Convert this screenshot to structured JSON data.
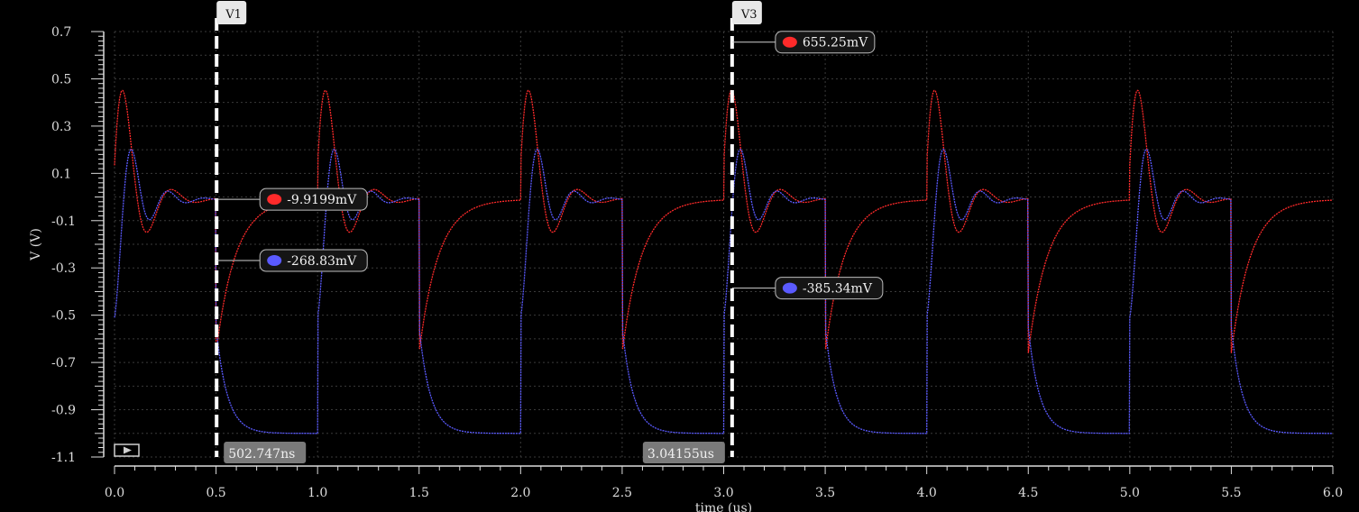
{
  "chart_data": {
    "type": "line",
    "xlabel": "time (us)",
    "ylabel": "V (V)",
    "xlim": [
      0,
      6.0
    ],
    "ylim": [
      -1.1,
      0.7
    ],
    "xticks": [
      "0.0",
      "0.5",
      "1.0",
      "1.5",
      "2.0",
      "2.5",
      "3.0",
      "3.5",
      "4.0",
      "4.5",
      "5.0",
      "5.5",
      "6.0"
    ],
    "yticks": [
      "0.7",
      "0.5",
      "0.3",
      "0.1",
      "-0.1",
      "-0.3",
      "-0.5",
      "-0.7",
      "-0.9",
      "-1.1"
    ],
    "grid": true,
    "background": "#000000",
    "series": [
      {
        "color": "#ff2a2a",
        "period_us": 1.0,
        "steady_level": -0.01,
        "peak": 0.655,
        "trough": -0.66
      },
      {
        "color": "#5a5aff",
        "period_us": 1.0,
        "steady_level": -0.01,
        "peak": 0.14,
        "low_level": -1.0
      }
    ],
    "cursors": [
      {
        "label": "V1",
        "time": 0.502747,
        "time_label": "502.747ns",
        "readouts": [
          {
            "color": "#ff2a2a",
            "value": -0.0099199,
            "text": "-9.9199mV"
          },
          {
            "color": "#5a5aff",
            "value": -0.26883,
            "text": "-268.83mV"
          }
        ]
      },
      {
        "label": "V3",
        "time": 3.04155,
        "time_label": "3.04155us",
        "readouts": [
          {
            "color": "#ff2a2a",
            "value": 0.65525,
            "text": "655.25mV"
          },
          {
            "color": "#5a5aff",
            "value": -0.38534,
            "text": "-385.34mV"
          }
        ]
      }
    ]
  },
  "icons": {
    "play_button": "play-icon"
  }
}
